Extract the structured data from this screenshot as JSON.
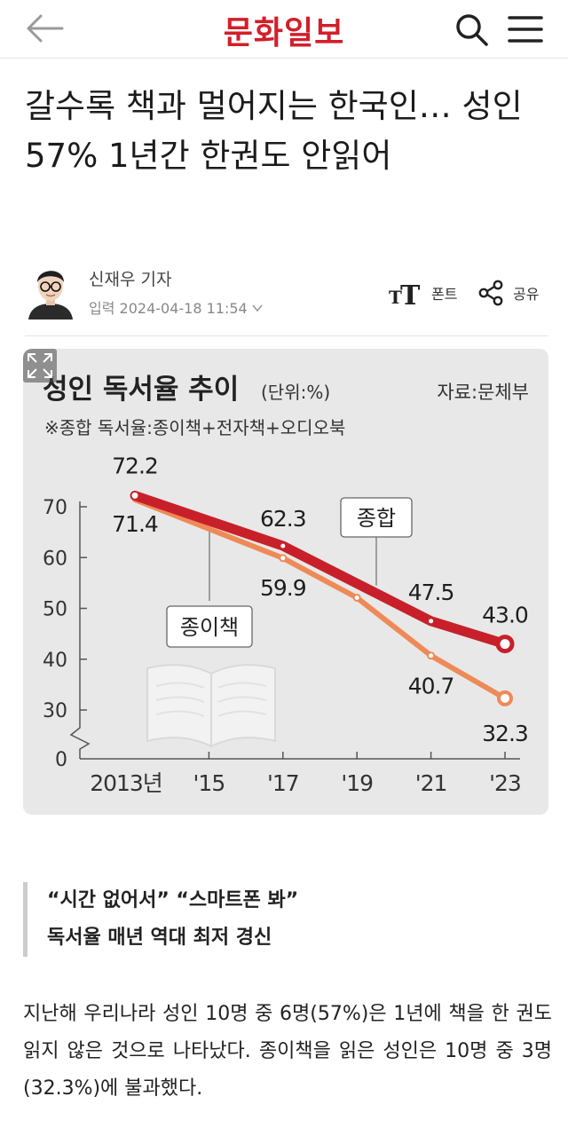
{
  "header": {
    "logo_text": "문화일보",
    "brand_color": "#d21f2b"
  },
  "article": {
    "title": "갈수록 책과 멀어지는 한국인… 성인 57% 1년간 한권도 안읽어",
    "reporter": "신재우 기자",
    "published": "입력 2024-04-18 11:54",
    "font_label": "폰트",
    "share_label": "공유",
    "subheading": [
      "“시간 없어서” “스마트폰 봐”",
      "독서율 매년 역대 최저 경신"
    ],
    "body": "지난해 우리나라 성인 10명 중 6명(57%)은 1년에 책을 한 권도 읽지 않은 것으로 나타났다. 종이책을 읽은 성인은 10명 중 3명(32.3%)에 불과했다."
  },
  "chart_data": {
    "type": "line",
    "title": "성인 독서율 추이",
    "unit_note": "(단위:%)",
    "source": "자료:문체부",
    "subtitle": "※종합 독서율:종이책+전자책+오디오북",
    "categories": [
      "2013년",
      "'15",
      "'17",
      "'19",
      "'21",
      "'23"
    ],
    "x": [
      2013,
      2015,
      2017,
      2019,
      2021,
      2023
    ],
    "y_ticks": [
      "0",
      "30",
      "40",
      "50",
      "60",
      "70"
    ],
    "ylim": [
      0,
      75
    ],
    "series": [
      {
        "name": "종합",
        "color": "#c8202a",
        "points": [
          [
            2013,
            72.2
          ],
          [
            2017,
            62.3
          ],
          [
            2021,
            47.5
          ],
          [
            2023,
            43.0
          ]
        ],
        "labels": [
          "72.2",
          "62.3",
          "47.5",
          "43.0"
        ]
      },
      {
        "name": "종이책",
        "color": "#ee8a57",
        "points": [
          [
            2013,
            71.4
          ],
          [
            2017,
            59.9
          ],
          [
            2019,
            52.1
          ],
          [
            2021,
            40.7
          ],
          [
            2023,
            32.3
          ]
        ],
        "labels": [
          "71.4",
          "59.9",
          "",
          "40.7",
          "32.3"
        ]
      }
    ]
  },
  "icons": [
    "back-arrow-icon",
    "search-icon",
    "menu-icon",
    "font-size-icon",
    "share-icon",
    "expand-icon",
    "book-icon"
  ]
}
